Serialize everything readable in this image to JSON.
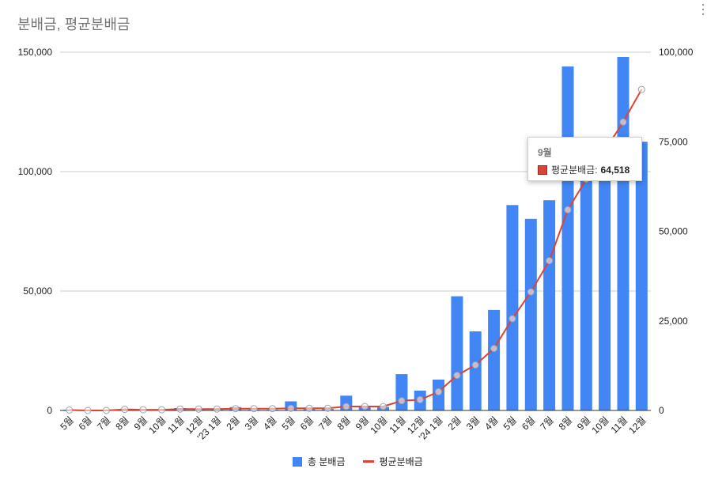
{
  "menu_icon": "more-vert-icon",
  "chart_data": {
    "type": "bar",
    "title": "분배금, 평균분배금",
    "categories": [
      "5월",
      "6월",
      "7월",
      "8월",
      "9월",
      "10월",
      "11월",
      "12월",
      "'23 1월",
      "2월",
      "3월",
      "4월",
      "5월",
      "6월",
      "7월",
      "8월",
      "9월",
      "10월",
      "11월",
      "12월",
      "'24 1월",
      "2월",
      "3월",
      "4월",
      "5월",
      "6월",
      "7월",
      "8월",
      "9월",
      "10월",
      "11월",
      "12월"
    ],
    "series": [
      {
        "name": "총 분배금",
        "type": "bar",
        "y_axis": "left",
        "color": "#4285F4",
        "values": [
          300,
          0,
          0,
          600,
          200,
          200,
          1000,
          300,
          300,
          1400,
          300,
          300,
          3800,
          600,
          600,
          6200,
          1800,
          1500,
          15200,
          8300,
          12900,
          47800,
          33100,
          42100,
          86000,
          80200,
          88000,
          144000,
          106000,
          104000,
          148000,
          112500
        ]
      },
      {
        "name": "평균분배금",
        "type": "line",
        "y_axis": "right",
        "color": "#DB4437",
        "values": [
          100,
          0,
          0,
          300,
          200,
          200,
          400,
          400,
          400,
          500,
          500,
          500,
          600,
          600,
          600,
          1100,
          1100,
          1100,
          2700,
          3000,
          5200,
          9800,
          12700,
          17300,
          25600,
          33100,
          41800,
          56000,
          64518,
          72500,
          80500,
          89600
        ]
      }
    ],
    "y_left": {
      "range": [
        0,
        150000
      ],
      "ticks": [
        {
          "value": 0,
          "label": "0"
        },
        {
          "value": 50000,
          "label": "50,000"
        },
        {
          "value": 100000,
          "label": "100,000"
        },
        {
          "value": 150000,
          "label": "150,000"
        }
      ]
    },
    "y_right": {
      "range": [
        0,
        100000
      ],
      "ticks": [
        {
          "value": 0,
          "label": "0"
        },
        {
          "value": 25000,
          "label": "25,000"
        },
        {
          "value": 50000,
          "label": "50,000"
        },
        {
          "value": 75000,
          "label": "75,000"
        },
        {
          "value": 100000,
          "label": "100,000"
        }
      ]
    },
    "grid": true,
    "legend": "bottom",
    "tooltip": {
      "category": "9월",
      "label": "평균분배금:",
      "value": "64,518"
    }
  }
}
